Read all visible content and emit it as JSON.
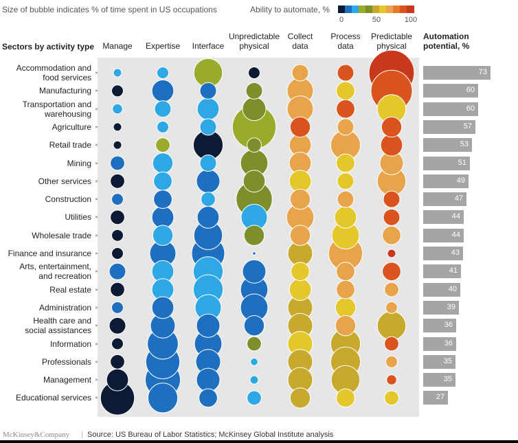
{
  "header": {
    "bubble_note": "Size of bubble indicates % of time spent in US occupations",
    "scale_title": "Ability to automate, %",
    "scale_ticks": [
      "0",
      "50",
      "100"
    ],
    "scale_colors": [
      "#0c1b33",
      "#1f6fc0",
      "#2ea8e5",
      "#9aab2c",
      "#7d8f2a",
      "#c7a92e",
      "#e4c72a",
      "#e8a44a",
      "#e47a2a",
      "#d9541e",
      "#c9381a"
    ]
  },
  "row_header": "Sectors by activity type",
  "potential_header": [
    "Automation",
    "potential, %"
  ],
  "footer": {
    "logo": "McKinsey&Company",
    "separator": "|",
    "source": "Source: US Bureau of Labor Statistics; McKinsey Global Institute analysis"
  },
  "chart_data": {
    "type": "bubble-matrix",
    "columns": [
      {
        "label": [
          "Manage"
        ]
      },
      {
        "label": [
          "Expertise"
        ]
      },
      {
        "label": [
          "Interface"
        ]
      },
      {
        "label": [
          "Unpredictable",
          "physical"
        ]
      },
      {
        "label": [
          "Collect",
          "data"
        ]
      },
      {
        "label": [
          "Process",
          "data"
        ]
      },
      {
        "label": [
          "Predictable",
          "physical"
        ]
      }
    ],
    "rows": [
      {
        "label": [
          "Accommodation and",
          "food services"
        ],
        "potential": 73,
        "bubbles": [
          {
            "share": 1,
            "color": "#2ea8e5"
          },
          {
            "share": 2,
            "color": "#2ea8e5"
          },
          {
            "share": 12,
            "color": "#9aab2c"
          },
          {
            "share": 2,
            "color": "#0c1b33"
          },
          {
            "share": 4,
            "color": "#e8a44a"
          },
          {
            "share": 4,
            "color": "#d9541e"
          },
          {
            "share": 30,
            "color": "#c9381a"
          }
        ]
      },
      {
        "label": [
          "Manufacturing"
        ],
        "potential": 60,
        "bubbles": [
          {
            "share": 2,
            "color": "#0c1b33"
          },
          {
            "share": 7,
            "color": "#1f6fc0"
          },
          {
            "share": 4,
            "color": "#1f6fc0"
          },
          {
            "share": 4,
            "color": "#7d8f2a"
          },
          {
            "share": 10,
            "color": "#e8a44a"
          },
          {
            "share": 5,
            "color": "#e4c72a"
          },
          {
            "share": 25,
            "color": "#d9541e"
          }
        ]
      },
      {
        "label": [
          "Transportation and",
          "warehousing"
        ],
        "potential": 60,
        "bubbles": [
          {
            "share": 1.5,
            "color": "#2ea8e5"
          },
          {
            "share": 4,
            "color": "#2ea8e5"
          },
          {
            "share": 7,
            "color": "#2ea8e5"
          },
          {
            "share": 8,
            "color": "#7d8f2a"
          },
          {
            "share": 10,
            "color": "#e8a44a"
          },
          {
            "share": 5,
            "color": "#d9541e"
          },
          {
            "share": 12,
            "color": "#e4c72a"
          }
        ]
      },
      {
        "label": [
          "Agriculture"
        ],
        "potential": 57,
        "bubbles": [
          {
            "share": 1,
            "color": "#0c1b33"
          },
          {
            "share": 2,
            "color": "#2ea8e5"
          },
          {
            "share": 4,
            "color": "#2ea8e5"
          },
          {
            "share": 28,
            "color": "#9aab2c"
          },
          {
            "share": 6,
            "color": "#d9541e"
          },
          {
            "share": 4,
            "color": "#e8a44a"
          },
          {
            "share": 6,
            "color": "#d9541e"
          }
        ]
      },
      {
        "label": [
          "Retail trade"
        ],
        "potential": 53,
        "bubbles": [
          {
            "share": 1,
            "color": "#0c1b33"
          },
          {
            "share": 3,
            "color": "#9aab2c"
          },
          {
            "share": 13,
            "color": "#0c1b33"
          },
          {
            "share": 3,
            "color": "#7d8f2a"
          },
          {
            "share": 7,
            "color": "#e8a44a"
          },
          {
            "share": 13,
            "color": "#e8a44a"
          },
          {
            "share": 7,
            "color": "#d9541e"
          }
        ]
      },
      {
        "label": [
          "Mining"
        ],
        "potential": 51,
        "bubbles": [
          {
            "share": 3,
            "color": "#1f6fc0"
          },
          {
            "share": 6,
            "color": "#2ea8e5"
          },
          {
            "share": 4,
            "color": "#2ea8e5"
          },
          {
            "share": 11,
            "color": "#7d8f2a"
          },
          {
            "share": 7,
            "color": "#e8a44a"
          },
          {
            "share": 5,
            "color": "#e4c72a"
          },
          {
            "share": 8,
            "color": "#e8a44a"
          }
        ]
      },
      {
        "label": [
          "Other services"
        ],
        "potential": 49,
        "bubbles": [
          {
            "share": 3,
            "color": "#0c1b33"
          },
          {
            "share": 5,
            "color": "#2ea8e5"
          },
          {
            "share": 8,
            "color": "#1f6fc0"
          },
          {
            "share": 7,
            "color": "#7d8f2a"
          },
          {
            "share": 7,
            "color": "#e4c72a"
          },
          {
            "share": 4,
            "color": "#e4c72a"
          },
          {
            "share": 12,
            "color": "#e8a44a"
          }
        ]
      },
      {
        "label": [
          "Construction"
        ],
        "potential": 47,
        "bubbles": [
          {
            "share": 2,
            "color": "#1f6fc0"
          },
          {
            "share": 5,
            "color": "#1f6fc0"
          },
          {
            "share": 3,
            "color": "#2ea8e5"
          },
          {
            "share": 19,
            "color": "#7d8f2a"
          },
          {
            "share": 6,
            "color": "#e8a44a"
          },
          {
            "share": 4,
            "color": "#e8a44a"
          },
          {
            "share": 4,
            "color": "#d9541e"
          }
        ]
      },
      {
        "label": [
          "Utilities"
        ],
        "potential": 44,
        "bubbles": [
          {
            "share": 3,
            "color": "#0c1b33"
          },
          {
            "share": 7,
            "color": "#1f6fc0"
          },
          {
            "share": 7,
            "color": "#1f6fc0"
          },
          {
            "share": 10,
            "color": "#2ea8e5"
          },
          {
            "share": 11,
            "color": "#e8a44a"
          },
          {
            "share": 7,
            "color": "#e4c72a"
          },
          {
            "share": 4,
            "color": "#d9541e"
          }
        ]
      },
      {
        "label": [
          "Wholesale trade"
        ],
        "potential": 44,
        "bubbles": [
          {
            "share": 2,
            "color": "#0c1b33"
          },
          {
            "share": 6,
            "color": "#2ea8e5"
          },
          {
            "share": 12,
            "color": "#1f6fc0"
          },
          {
            "share": 6,
            "color": "#7d8f2a"
          },
          {
            "share": 6,
            "color": "#e8a44a"
          },
          {
            "share": 11,
            "color": "#e4c72a"
          },
          {
            "share": 5,
            "color": "#e8a44a"
          }
        ]
      },
      {
        "label": [
          "Finance and insurance"
        ],
        "potential": 43,
        "bubbles": [
          {
            "share": 2,
            "color": "#0c1b33"
          },
          {
            "share": 10,
            "color": "#1f6fc0"
          },
          {
            "share": 16,
            "color": "#1f6fc0"
          },
          {
            "share": 0.15,
            "color": "#1f6fc0"
          },
          {
            "share": 9,
            "color": "#c7a92e"
          },
          {
            "share": 17,
            "color": "#e8a44a"
          },
          {
            "share": 1,
            "color": "#c9381a"
          }
        ]
      },
      {
        "label": [
          "Arts, entertainment,",
          "and recreation"
        ],
        "potential": 41,
        "bubbles": [
          {
            "share": 4,
            "color": "#1f6fc0"
          },
          {
            "share": 7,
            "color": "#2ea8e5"
          },
          {
            "share": 13,
            "color": "#2ea8e5"
          },
          {
            "share": 8,
            "color": "#1f6fc0"
          },
          {
            "share": 5,
            "color": "#e4c72a"
          },
          {
            "share": 5,
            "color": "#e8a44a"
          },
          {
            "share": 5,
            "color": "#d9541e"
          }
        ]
      },
      {
        "label": [
          "Real estate"
        ],
        "potential": 40,
        "bubbles": [
          {
            "share": 3,
            "color": "#0c1b33"
          },
          {
            "share": 7,
            "color": "#2ea8e5"
          },
          {
            "share": 13,
            "color": "#2ea8e5"
          },
          {
            "share": 11,
            "color": "#1f6fc0"
          },
          {
            "share": 7,
            "color": "#e4c72a"
          },
          {
            "share": 5,
            "color": "#e8a44a"
          },
          {
            "share": 3,
            "color": "#e8a44a"
          }
        ]
      },
      {
        "label": [
          "Administration"
        ],
        "potential": 39,
        "bubbles": [
          {
            "share": 2,
            "color": "#1f6fc0"
          },
          {
            "share": 7,
            "color": "#1f6fc0"
          },
          {
            "share": 10,
            "color": "#2ea8e5"
          },
          {
            "share": 11,
            "color": "#1f6fc0"
          },
          {
            "share": 9,
            "color": "#c7a92e"
          },
          {
            "share": 6,
            "color": "#e4c72a"
          },
          {
            "share": 2,
            "color": "#e8a44a"
          }
        ]
      },
      {
        "label": [
          "Health care and",
          "social assistances"
        ],
        "potential": 36,
        "bubbles": [
          {
            "share": 4,
            "color": "#0c1b33"
          },
          {
            "share": 9,
            "color": "#1f6fc0"
          },
          {
            "share": 8,
            "color": "#1f6fc0"
          },
          {
            "share": 6,
            "color": "#1f6fc0"
          },
          {
            "share": 9,
            "color": "#c7a92e"
          },
          {
            "share": 6,
            "color": "#e8a44a"
          },
          {
            "share": 12,
            "color": "#c7a92e"
          }
        ]
      },
      {
        "label": [
          "Information"
        ],
        "potential": 36,
        "bubbles": [
          {
            "share": 2,
            "color": "#0c1b33"
          },
          {
            "share": 14,
            "color": "#1f6fc0"
          },
          {
            "share": 11,
            "color": "#1f6fc0"
          },
          {
            "share": 3,
            "color": "#7d8f2a"
          },
          {
            "share": 9,
            "color": "#e4c72a"
          },
          {
            "share": 13,
            "color": "#c7a92e"
          },
          {
            "share": 3,
            "color": "#d9541e"
          }
        ]
      },
      {
        "label": [
          "Professionals"
        ],
        "potential": 35,
        "bubbles": [
          {
            "share": 3,
            "color": "#0c1b33"
          },
          {
            "share": 17,
            "color": "#1f6fc0"
          },
          {
            "share": 9,
            "color": "#1f6fc0"
          },
          {
            "share": 0.8,
            "color": "#2ea8e5"
          },
          {
            "share": 9,
            "color": "#c7a92e"
          },
          {
            "share": 13,
            "color": "#c7a92e"
          },
          {
            "share": 2,
            "color": "#e8a44a"
          }
        ]
      },
      {
        "label": [
          "Management"
        ],
        "potential": 35,
        "bubbles": [
          {
            "share": 7,
            "color": "#0c1b33"
          },
          {
            "share": 18,
            "color": "#1f6fc0"
          },
          {
            "share": 8,
            "color": "#1f6fc0"
          },
          {
            "share": 1,
            "color": "#2ea8e5"
          },
          {
            "share": 9,
            "color": "#c7a92e"
          },
          {
            "share": 12,
            "color": "#c7a92e"
          },
          {
            "share": 1.5,
            "color": "#d9541e"
          }
        ]
      },
      {
        "label": [
          "Educational services"
        ],
        "potential": 27,
        "bubbles": [
          {
            "share": 17,
            "color": "#0c1b33"
          },
          {
            "share": 13,
            "color": "#1f6fc0"
          },
          {
            "share": 5,
            "color": "#1f6fc0"
          },
          {
            "share": 3,
            "color": "#2ea8e5"
          },
          {
            "share": 6,
            "color": "#c7a92e"
          },
          {
            "share": 5,
            "color": "#e4c72a"
          },
          {
            "share": 3,
            "color": "#e4c72a"
          }
        ]
      }
    ]
  }
}
